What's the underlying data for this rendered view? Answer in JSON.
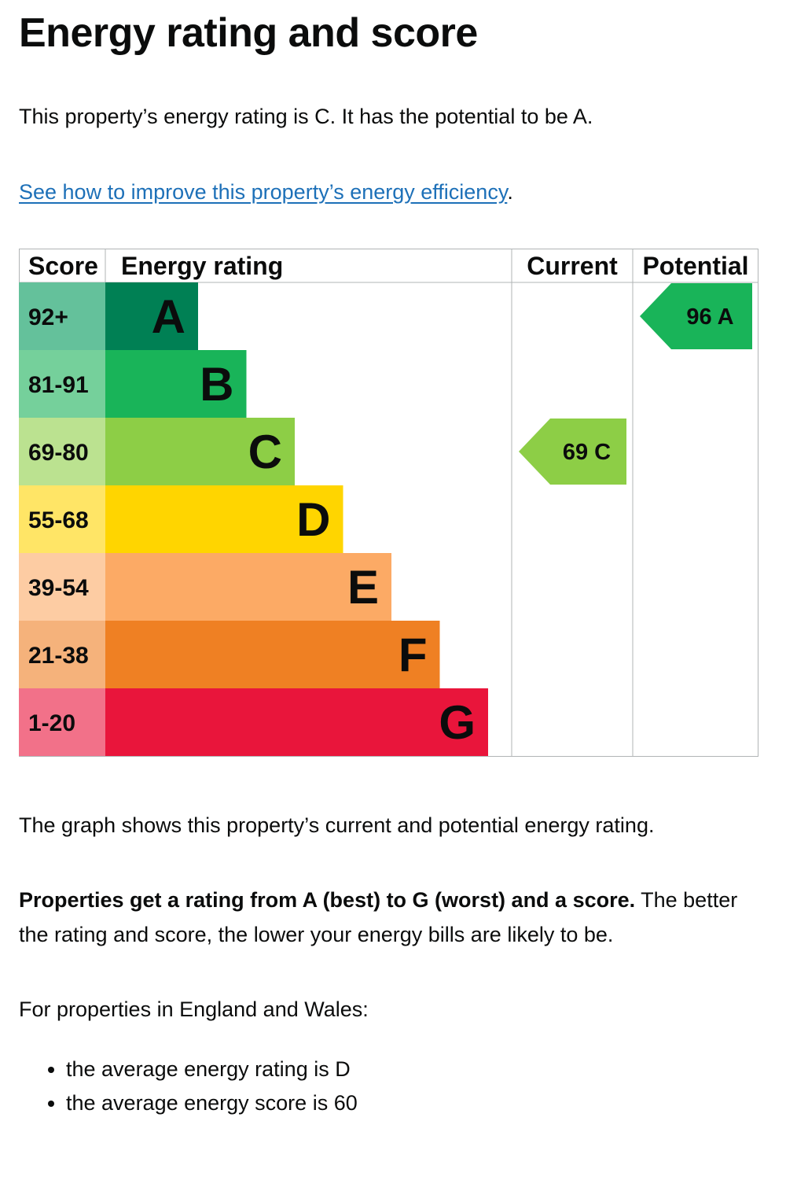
{
  "heading": "Energy rating and score",
  "intro": "This property’s energy rating is C. It has the potential to be A.",
  "improve_link": {
    "text": "See how to improve this property’s energy efficiency",
    "suffix": "."
  },
  "chart_data": {
    "type": "bar",
    "columns": {
      "score": "Score",
      "rating": "Energy rating",
      "current": "Current",
      "potential": "Potential"
    },
    "bands": [
      {
        "letter": "A",
        "score_range": "92+",
        "color": "#008054",
        "score_color": "#64c19b"
      },
      {
        "letter": "B",
        "score_range": "81-91",
        "color": "#19b459",
        "score_color": "#75d09b"
      },
      {
        "letter": "C",
        "score_range": "69-80",
        "color": "#8dce46",
        "score_color": "#bbe290"
      },
      {
        "letter": "D",
        "score_range": "55-68",
        "color": "#ffd500",
        "score_color": "#ffe566"
      },
      {
        "letter": "E",
        "score_range": "39-54",
        "color": "#fcaa65",
        "score_color": "#fdcca3"
      },
      {
        "letter": "F",
        "score_range": "21-38",
        "color": "#ef8023",
        "score_color": "#f5b27b"
      },
      {
        "letter": "G",
        "score_range": "1-20",
        "color": "#e9153b",
        "score_color": "#f27189"
      }
    ],
    "current": {
      "score": 69,
      "rating": "C",
      "label": "69  C",
      "color": "#8dce46"
    },
    "potential": {
      "score": 96,
      "rating": "A",
      "label": "96  A",
      "color": "#19b459"
    }
  },
  "graph_caption": "The graph shows this property’s current and potential energy rating.",
  "ratings_explanation": {
    "bold": "Properties get a rating from A (best) to G (worst) and a score.",
    "rest": " The better the rating and score, the lower your energy bills are likely to be."
  },
  "region_text": "For properties in England and Wales:",
  "averages": [
    "the average energy rating is D",
    "the average energy score is 60"
  ]
}
